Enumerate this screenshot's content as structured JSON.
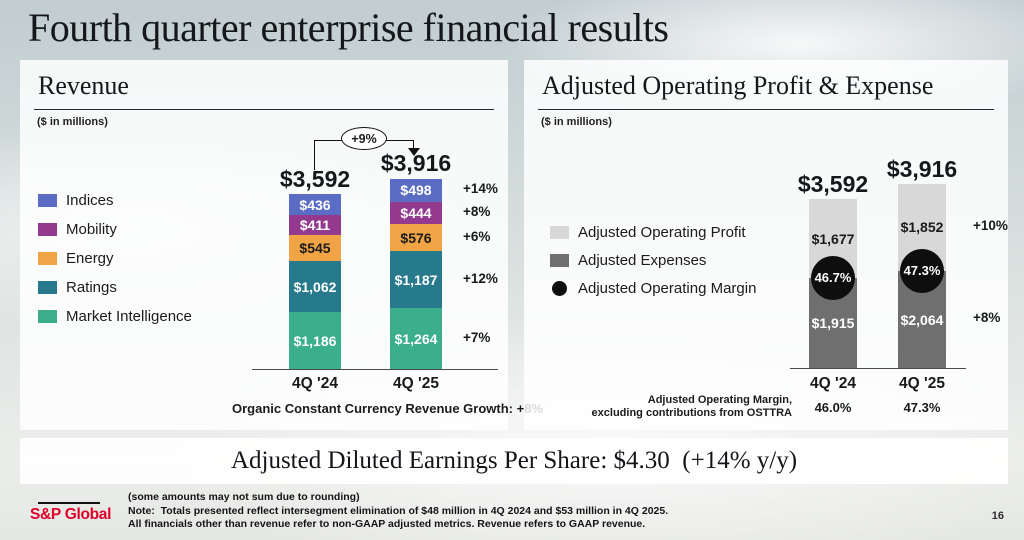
{
  "page": {
    "title": "Fourth quarter enterprise financial results",
    "page_number": "16",
    "logo_text": "S&P Global"
  },
  "colors": {
    "indices": "#5B6CC4",
    "mobility": "#93398E",
    "energy": "#F0A445",
    "ratings": "#27798C",
    "market_intelligence": "#3BAE8B",
    "profit_light": "#D8D8D8",
    "expense_dark": "#6F6F6F",
    "margin_black": "#0E0E0E",
    "logo_red": "#E00028"
  },
  "revenue_panel": {
    "title": "Revenue",
    "units": "($ in millions)"
  },
  "profit_panel": {
    "title": "Adjusted Operating Profit & Expense",
    "units": "($ in millions)"
  },
  "eps_banner": {
    "text": "Adjusted Diluted Earnings Per Share: $4.30  (+14% y/y)"
  },
  "footnotes": {
    "lines": [
      "(some amounts may not sum due to rounding)",
      "Note:  Totals presented reflect intersegment elimination of $48 million in 4Q 2024 and $53 million in 4Q 2025.",
      "All financials other than revenue refer to non-GAAP adjusted metrics. Revenue refers to GAAP revenue."
    ]
  },
  "chart_data": [
    {
      "type": "bar",
      "stacked": true,
      "title": "Revenue",
      "units": "$ in millions",
      "categories": [
        "4Q '24",
        "4Q '25"
      ],
      "totals": [
        "$3,592",
        "$3,916"
      ],
      "total_growth": "+9%",
      "series": [
        {
          "name": "Indices",
          "values": [
            436,
            498
          ],
          "labels": [
            "$436",
            "$498"
          ],
          "growth": "+14%",
          "color_key": "indices",
          "text": "light"
        },
        {
          "name": "Mobility",
          "values": [
            411,
            444
          ],
          "labels": [
            "$411",
            "$444"
          ],
          "growth": "+8%",
          "color_key": "mobility",
          "text": "light"
        },
        {
          "name": "Energy",
          "values": [
            545,
            576
          ],
          "labels": [
            "$545",
            "$576"
          ],
          "growth": "+6%",
          "color_key": "energy",
          "text": "dark"
        },
        {
          "name": "Ratings",
          "values": [
            1062,
            1187
          ],
          "labels": [
            "$1,062",
            "$1,187"
          ],
          "growth": "+12%",
          "color_key": "ratings",
          "text": "light"
        },
        {
          "name": "Market Intelligence",
          "values": [
            1186,
            1264
          ],
          "labels": [
            "$1,186",
            "$1,264"
          ],
          "growth": "+7%",
          "color_key": "market_intelligence",
          "text": "light"
        }
      ],
      "note": "Organic Constant Currency Revenue Growth: +8%"
    },
    {
      "type": "bar",
      "stacked": true,
      "title": "Adjusted Operating Profit & Expense",
      "units": "$ in millions",
      "categories": [
        "4Q '24",
        "4Q '25"
      ],
      "totals": [
        "$3,592",
        "$3,916"
      ],
      "series": [
        {
          "name": "Adjusted Operating Profit",
          "values": [
            1677,
            1852
          ],
          "labels": [
            "$1,677",
            "$1,852"
          ],
          "growth": "+10%",
          "color_key": "profit_light",
          "text": "dark"
        },
        {
          "name": "Adjusted Expenses",
          "values": [
            1915,
            2064
          ],
          "labels": [
            "$1,915",
            "$2,064"
          ],
          "growth": "+8%",
          "color_key": "expense_dark",
          "text": "light"
        }
      ],
      "margin": {
        "name": "Adjusted Operating Margin",
        "values": [
          "46.7%",
          "47.3%"
        ]
      },
      "margin_ex_osttra": {
        "label_line1": "Adjusted Operating Margin,",
        "label_line2": "excluding contributions from OSTTRA",
        "values": [
          "46.0%",
          "47.3%"
        ]
      }
    }
  ]
}
